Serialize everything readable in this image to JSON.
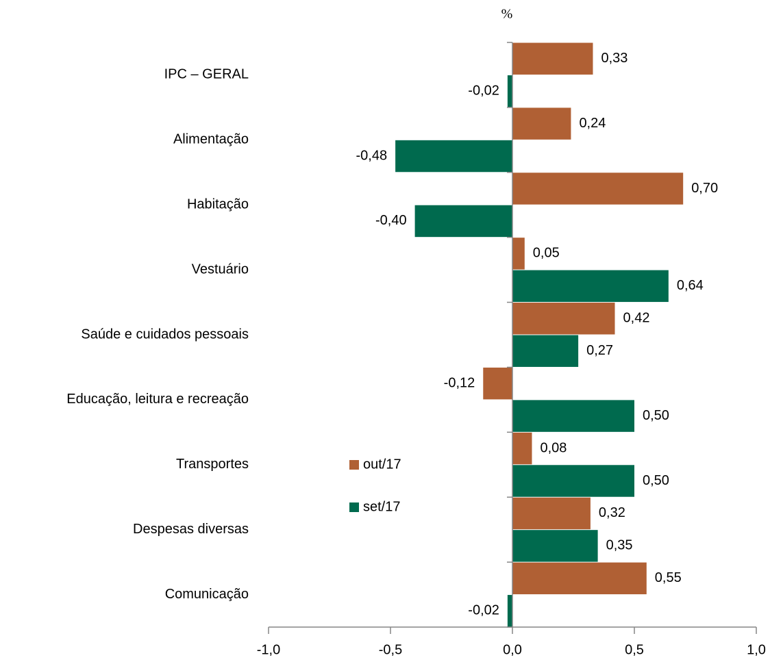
{
  "chart_data": {
    "type": "barh",
    "axis_label": "%",
    "categories": [
      "IPC – GERAL",
      "Alimentação",
      "Habitação",
      "Vestuário",
      "Saúde e cuidados pessoais",
      "Educação, leitura e recreação",
      "Transportes",
      "Despesas diversas",
      "Comunicação"
    ],
    "series": [
      {
        "name": "out/17",
        "color": "#b06034",
        "values": [
          0.33,
          0.24,
          0.7,
          0.05,
          0.42,
          -0.12,
          0.08,
          0.32,
          0.55
        ],
        "value_labels": [
          "0,33",
          "0,24",
          "0,70",
          "0,05",
          "0,42",
          "-0,12",
          "0,08",
          "0,32",
          "0,55"
        ]
      },
      {
        "name": "set/17",
        "color": "#006a4e",
        "values": [
          -0.02,
          -0.48,
          -0.4,
          0.64,
          0.27,
          0.5,
          0.5,
          0.35,
          -0.02
        ],
        "value_labels": [
          "-0,02",
          "-0,48",
          "-0,40",
          "0,64",
          "0,27",
          "0,50",
          "0,50",
          "0,35",
          "-0,02"
        ]
      }
    ],
    "xlim": [
      -1.0,
      1.0
    ],
    "xticks": [
      {
        "value": -1.0,
        "label": "-1,0"
      },
      {
        "value": -0.5,
        "label": "-0,5"
      },
      {
        "value": 0.0,
        "label": "0,0"
      },
      {
        "value": 0.5,
        "label": "0,5"
      },
      {
        "value": 1.0,
        "label": "1,0"
      }
    ],
    "grid": false,
    "legend": "center-left"
  }
}
